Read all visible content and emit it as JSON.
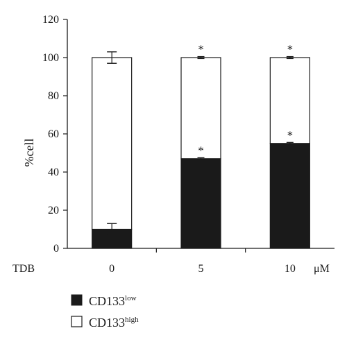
{
  "chart_data": {
    "type": "bar",
    "stacked": true,
    "categories": [
      "0",
      "5",
      "10"
    ],
    "series": [
      {
        "name": "CD133low",
        "label_base": "CD133",
        "label_sup": "low",
        "color": "#1a1a1a",
        "values": [
          10,
          47,
          55
        ],
        "errors": [
          3,
          0.5,
          0.5
        ],
        "significance": [
          "",
          "*",
          "*"
        ]
      },
      {
        "name": "CD133high",
        "label_base": "CD133",
        "label_sup": "high",
        "color": "#ffffff",
        "values": [
          90,
          53,
          45
        ],
        "errors": [
          3,
          0.5,
          0.5
        ],
        "significance": [
          "",
          "*",
          "*"
        ]
      }
    ],
    "ylabel": "%cell",
    "xlabel_left": "TDB",
    "xlabel_unit": "μM",
    "ylim": [
      0,
      120
    ],
    "yticks": [
      0,
      20,
      40,
      60,
      80,
      100,
      120
    ],
    "grid": false,
    "legend_position": "bottom-left"
  }
}
